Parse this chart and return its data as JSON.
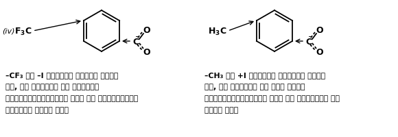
{
  "bg_color": "#ffffff",
  "fig_width": 5.8,
  "fig_height": 2.01,
  "dpi": 100,
  "left_iv": "(iv) F",
  "left_sub3": "3",
  "left_subC": "C",
  "right_subH": "H",
  "right_sub3b": "3",
  "right_subCH": "C",
  "text_left": [
    "–CF₃ का –I प्रभाव प्रबल होता",
    "है, यह ृणावेश को फैलाकर",
    "कार्बोक्सिसलेट आयन को स्थायित्व",
    "प्रदान करता है।"
  ],
  "text_right": [
    "–CH₃ का +I प्रभाव दुर्बल होता",
    "है, यह ृणावेश को सघन करके",
    "कार्बोक्सिसलेट आयन को अस्थायी कर",
    "देता है।"
  ]
}
